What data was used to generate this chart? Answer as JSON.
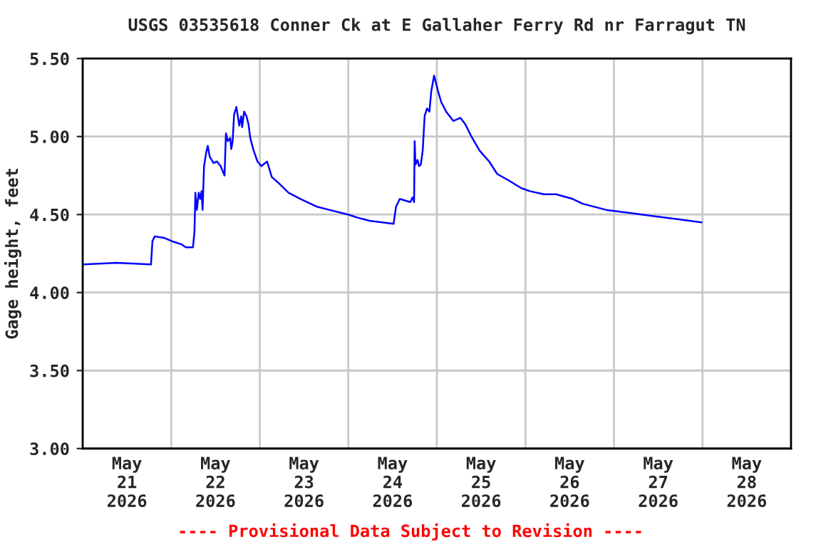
{
  "chart_data": {
    "type": "line",
    "title": "USGS 03535618 Conner Ck at E Gallaher Ferry Rd nr Farragut TN",
    "ylabel": "Gage height, feet",
    "annotations": [
      "---- Provisional Data Subject to Revision ----"
    ],
    "xlim": [
      "2026-05-21T00:00",
      "2026-05-29T00:00"
    ],
    "xticks": [
      {
        "value": "2026-05-21T00:00",
        "label": null
      },
      {
        "value": "2026-05-21T12:00",
        "label": "May\n21\n2026"
      },
      {
        "value": "2026-05-22T00:00",
        "label": null
      },
      {
        "value": "2026-05-22T12:00",
        "label": "May\n22\n2026"
      },
      {
        "value": "2026-05-23T00:00",
        "label": null
      },
      {
        "value": "2026-05-23T12:00",
        "label": "May\n23\n2026"
      },
      {
        "value": "2026-05-24T00:00",
        "label": null
      },
      {
        "value": "2026-05-24T12:00",
        "label": "May\n24\n2026"
      },
      {
        "value": "2026-05-25T00:00",
        "label": null
      },
      {
        "value": "2026-05-25T12:00",
        "label": "May\n25\n2026"
      },
      {
        "value": "2026-05-26T00:00",
        "label": null
      },
      {
        "value": "2026-05-26T12:00",
        "label": "May\n26\n2026"
      },
      {
        "value": "2026-05-27T00:00",
        "label": null
      },
      {
        "value": "2026-05-27T12:00",
        "label": "May\n27\n2026"
      },
      {
        "value": "2026-05-28T00:00",
        "label": null
      },
      {
        "value": "2026-05-28T12:00",
        "label": "May\n28\n2026"
      },
      {
        "value": "2026-05-29T00:00",
        "label": null
      }
    ],
    "ylim": [
      3.0,
      5.5
    ],
    "yticks": [
      {
        "value": 3.0,
        "label": "3.00"
      },
      {
        "value": 3.5,
        "label": "3.50"
      },
      {
        "value": 4.0,
        "label": "4.00"
      },
      {
        "value": 4.5,
        "label": "4.50"
      },
      {
        "value": 5.0,
        "label": "5.00"
      },
      {
        "value": 5.5,
        "label": "5.50"
      }
    ],
    "grid": true,
    "legend": false,
    "marker": "none",
    "line_style": "solid",
    "series": [
      {
        "color": "#0000ff",
        "x": [
          "2026-05-21T00:07",
          "2026-05-21T09:12",
          "2026-05-21T18:31",
          "2026-05-21T18:55",
          "2026-05-21T19:32",
          "2026-05-21T22:08",
          "2026-05-22T00:05",
          "2026-05-22T02:41",
          "2026-05-22T03:58",
          "2026-05-22T05:54",
          "2026-05-22T06:18",
          "2026-05-22T06:33",
          "2026-05-22T06:57",
          "2026-05-22T07:27",
          "2026-05-22T07:51",
          "2026-05-22T08:14",
          "2026-05-22T08:30",
          "2026-05-22T08:54",
          "2026-05-22T09:30",
          "2026-05-22T09:54",
          "2026-05-22T10:27",
          "2026-05-22T11:27",
          "2026-05-22T12:23",
          "2026-05-22T13:24",
          "2026-05-22T14:27",
          "2026-05-22T14:50",
          "2026-05-22T15:20",
          "2026-05-22T16:00",
          "2026-05-22T16:16",
          "2026-05-22T16:39",
          "2026-05-22T17:02",
          "2026-05-22T17:40",
          "2026-05-22T18:27",
          "2026-05-22T18:59",
          "2026-05-22T19:13",
          "2026-05-22T19:46",
          "2026-05-22T20:24",
          "2026-05-22T20:56",
          "2026-05-22T21:26",
          "2026-05-22T22:20",
          "2026-05-22T23:23",
          "2026-05-23T00:26",
          "2026-05-23T01:59",
          "2026-05-23T03:16",
          "2026-05-23T05:12",
          "2026-05-23T07:48",
          "2026-05-23T11:02",
          "2026-05-23T15:34",
          "2026-05-23T18:48",
          "2026-05-23T23:57",
          "2026-05-24T02:34",
          "2026-05-24T05:47",
          "2026-05-24T12:16",
          "2026-05-24T12:56",
          "2026-05-24T13:57",
          "2026-05-24T16:48",
          "2026-05-24T17:26",
          "2026-05-24T17:50",
          "2026-05-24T17:59",
          "2026-05-24T18:13",
          "2026-05-24T18:46",
          "2026-05-24T19:09",
          "2026-05-24T19:39",
          "2026-05-24T20:10",
          "2026-05-24T20:41",
          "2026-05-24T21:19",
          "2026-05-24T21:59",
          "2026-05-24T22:29",
          "2026-05-24T23:15",
          "2026-05-24T23:55",
          "2026-05-25T00:19",
          "2026-05-25T01:12",
          "2026-05-25T02:31",
          "2026-05-25T04:28",
          "2026-05-25T06:24",
          "2026-05-25T07:41",
          "2026-05-25T09:22",
          "2026-05-25T11:34",
          "2026-05-25T14:11",
          "2026-05-25T16:21",
          "2026-05-25T19:21",
          "2026-05-25T22:50",
          "2026-05-26T01:10",
          "2026-05-26T05:02",
          "2026-05-26T08:17",
          "2026-05-26T12:49",
          "2026-05-26T15:25",
          "2026-05-26T21:52",
          "2026-05-27T04:21",
          "2026-05-27T10:49",
          "2026-05-27T17:17",
          "2026-05-27T23:46"
        ],
        "values": [
          4.18,
          4.19,
          4.18,
          4.33,
          4.36,
          4.35,
          4.33,
          4.31,
          4.29,
          4.29,
          4.39,
          4.64,
          4.53,
          4.64,
          4.6,
          4.65,
          4.53,
          4.81,
          4.9,
          4.94,
          4.87,
          4.83,
          4.84,
          4.81,
          4.75,
          5.02,
          4.97,
          4.99,
          4.92,
          4.97,
          5.14,
          5.19,
          5.07,
          5.13,
          5.06,
          5.16,
          5.13,
          5.08,
          4.99,
          4.91,
          4.84,
          4.81,
          4.84,
          4.74,
          4.7,
          4.64,
          4.6,
          4.55,
          4.53,
          4.5,
          4.48,
          4.46,
          4.44,
          4.55,
          4.6,
          4.58,
          4.61,
          4.58,
          4.97,
          4.82,
          4.85,
          4.81,
          4.82,
          4.91,
          5.13,
          5.18,
          5.16,
          5.29,
          5.39,
          5.33,
          5.29,
          5.22,
          5.16,
          5.1,
          5.12,
          5.08,
          5.0,
          4.91,
          4.84,
          4.76,
          4.72,
          4.67,
          4.65,
          4.63,
          4.63,
          4.6,
          4.57,
          4.53,
          4.51,
          4.49,
          4.47,
          4.45
        ]
      }
    ]
  }
}
